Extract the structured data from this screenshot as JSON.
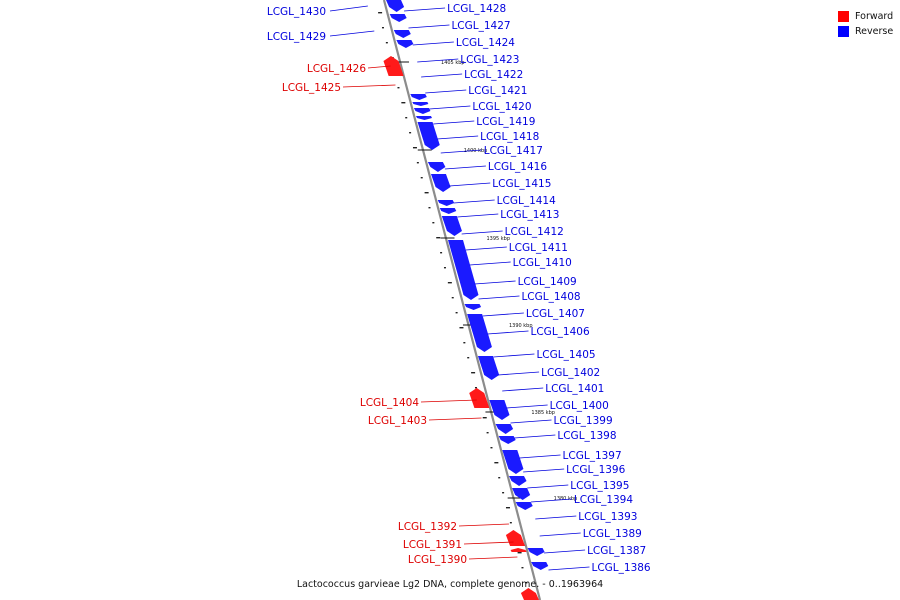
{
  "legend": [
    {
      "label": "Forward",
      "color": "#ff0000"
    },
    {
      "label": "Reverse",
      "color": "#0000ff"
    }
  ],
  "caption": "Lactococcus garvieae Lg2 DNA, complete genome. - 0..1963964",
  "colors": {
    "forward": "#ff1a1a",
    "reverse": "#1a1aff",
    "backbone": "#8c8c8c"
  },
  "tick_labels": [
    "1405 kbp",
    "1400 kbp",
    "1395 kbp",
    "1390 kbp",
    "1385 kbp",
    "1380 kbp"
  ],
  "genes_forward": [
    "LCGL_1426",
    "LCGL_1425",
    "LCGL_1404",
    "LCGL_1403",
    "LCGL_1392",
    "LCGL_1391",
    "LCGL_1390"
  ],
  "genes_reverse_left": [
    "LCGL_1430",
    "LCGL_1429"
  ],
  "genes_reverse_right": [
    "LCGL_1428",
    "LCGL_1427",
    "LCGL_1424",
    "LCGL_1423",
    "LCGL_1422",
    "LCGL_1421",
    "LCGL_1420",
    "LCGL_1419",
    "LCGL_1418",
    "LCGL_1417",
    "LCGL_1416",
    "LCGL_1415",
    "LCGL_1414",
    "LCGL_1413",
    "LCGL_1412",
    "LCGL_1411",
    "LCGL_1410",
    "LCGL_1409",
    "LCGL_1408",
    "LCGL_1407",
    "LCGL_1406",
    "LCGL_1405",
    "LCGL_1402",
    "LCGL_1401",
    "LCGL_1400",
    "LCGL_1399",
    "LCGL_1398",
    "LCGL_1397",
    "LCGL_1396",
    "LCGL_1395",
    "LCGL_1394",
    "LCGL_1393",
    "LCGL_1389",
    "LCGL_1387",
    "LCGL_1386"
  ]
}
